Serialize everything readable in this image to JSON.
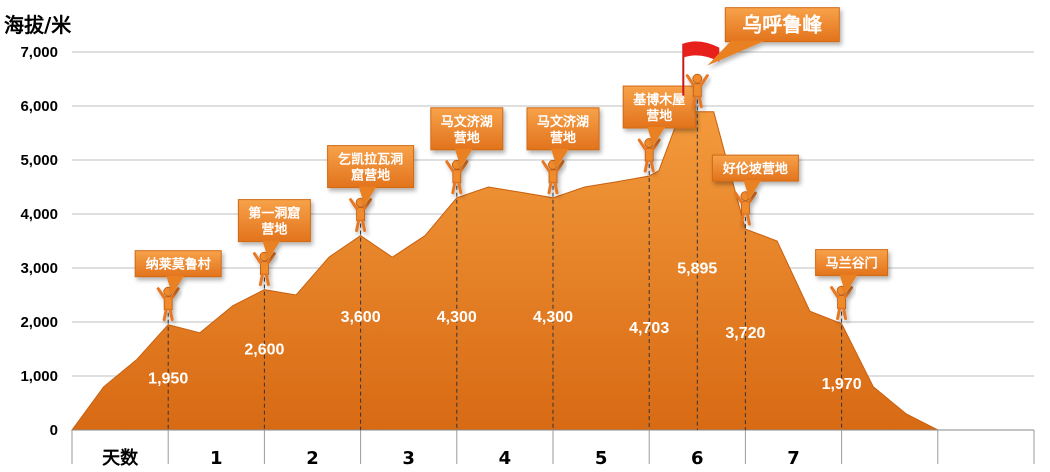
{
  "chart_data": {
    "type": "area",
    "ylabel": "海拔/米",
    "ylim": [
      0,
      7000
    ],
    "yticks": [
      0,
      1000,
      2000,
      3000,
      4000,
      5000,
      6000,
      7000
    ],
    "ytick_labels": [
      "0",
      "1,000",
      "2,000",
      "3,000",
      "4,000",
      "5,000",
      "6,000",
      "7,000"
    ],
    "xlim": [
      -1,
      9
    ],
    "x_tick_labels": [
      {
        "x": -0.5,
        "label": "天数"
      },
      {
        "x": 0.5,
        "label": "1"
      },
      {
        "x": 1.5,
        "label": "2"
      },
      {
        "x": 2.5,
        "label": "3"
      },
      {
        "x": 3.5,
        "label": "4"
      },
      {
        "x": 4.5,
        "label": "5"
      },
      {
        "x": 5.5,
        "label": "6"
      },
      {
        "x": 6.5,
        "label": "7"
      }
    ],
    "grid": true,
    "fill_color": "#e87722",
    "profile": {
      "x": [
        -1,
        -0.67,
        -0.33,
        0,
        0.33,
        0.67,
        1,
        1.33,
        1.67,
        2,
        2.33,
        2.67,
        3,
        3.33,
        3.67,
        4,
        4.33,
        4.67,
        5,
        5.1,
        5.33,
        5.67,
        6,
        6.33,
        6.67,
        7,
        7.33,
        7.67,
        8
      ],
      "y": [
        0,
        800,
        1300,
        1950,
        1800,
        2300,
        2600,
        2500,
        3200,
        3600,
        3200,
        3600,
        4300,
        4500,
        4400,
        4300,
        4500,
        4600,
        4703,
        4800,
        5895,
        5895,
        3720,
        3500,
        2200,
        1970,
        800,
        300,
        0
      ]
    },
    "points": [
      {
        "x": 0,
        "elevation": 1950,
        "value_label": "1,950",
        "site": [
          "纳莱莫鲁村"
        ]
      },
      {
        "x": 1,
        "elevation": 2600,
        "value_label": "2,600",
        "site": [
          "第一洞窟",
          "营地"
        ]
      },
      {
        "x": 2,
        "elevation": 3600,
        "value_label": "3,600",
        "site": [
          "乞凯拉瓦洞",
          "窟营地"
        ]
      },
      {
        "x": 3,
        "elevation": 4300,
        "value_label": "4,300",
        "site": [
          "马文济湖",
          "营地"
        ]
      },
      {
        "x": 4,
        "elevation": 4300,
        "value_label": "4,300",
        "site": [
          "马文济湖",
          "营地"
        ]
      },
      {
        "x": 5,
        "elevation": 4703,
        "value_label": "4,703",
        "site": [
          "基博木屋",
          "营地"
        ]
      },
      {
        "x": 5.5,
        "elevation": 5895,
        "value_label": "5,895",
        "site": [
          "乌呼鲁峰"
        ],
        "summit": true,
        "flag_color": "#e8201c"
      },
      {
        "x": 6,
        "elevation": 3720,
        "value_label": "3,720",
        "site": [
          "好伦坡营地"
        ]
      },
      {
        "x": 7,
        "elevation": 1970,
        "value_label": "1,970",
        "site": [
          "马兰谷门"
        ]
      }
    ]
  }
}
